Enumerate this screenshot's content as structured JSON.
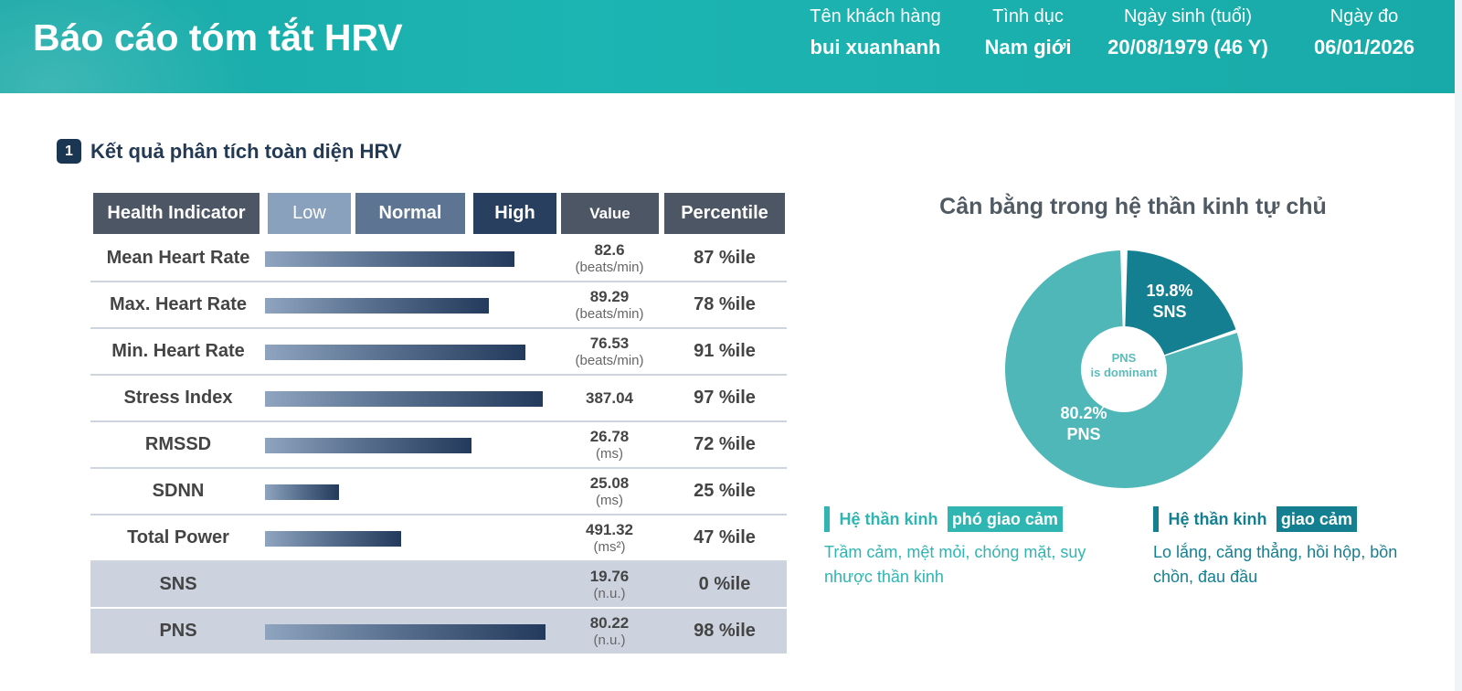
{
  "header": {
    "title": "Báo cáo tóm tắt HRV",
    "fields": [
      {
        "label": "Tên khách hàng",
        "value": "bui xuanhanh"
      },
      {
        "label": "Tình dục",
        "value": "Nam giới"
      },
      {
        "label": "Ngày sinh (tuổi)",
        "value": "20/08/1979 (46 Y)"
      },
      {
        "label": "Ngày đo",
        "value": "06/01/2026"
      }
    ]
  },
  "section": {
    "number": "1",
    "title": "Kết quả phân tích toàn diện HRV"
  },
  "table": {
    "headers": {
      "indicator": "Health Indicator",
      "low": "Low",
      "normal": "Normal",
      "high": "High",
      "value": "Value",
      "percentile": "Percentile"
    },
    "rows": [
      {
        "name": "Mean Heart Rate",
        "value": "82.6",
        "unit": "(beats/min)",
        "percentile": "87 %ile",
        "level": 0.88
      },
      {
        "name": "Max. Heart Rate",
        "value": "89.29",
        "unit": "(beats/min)",
        "percentile": "78 %ile",
        "level": 0.79
      },
      {
        "name": "Min. Heart Rate",
        "value": "76.53",
        "unit": "(beats/min)",
        "percentile": "91 %ile",
        "level": 0.92
      },
      {
        "name": "Stress Index",
        "value": "387.04",
        "unit": "",
        "percentile": "97 %ile",
        "level": 0.98
      },
      {
        "name": "RMSSD",
        "value": "26.78",
        "unit": "(ms)",
        "percentile": "72 %ile",
        "level": 0.73
      },
      {
        "name": "SDNN",
        "value": "25.08",
        "unit": "(ms)",
        "percentile": "25 %ile",
        "level": 0.26
      },
      {
        "name": "Total Power",
        "value": "491.32",
        "unit": "(ms²)",
        "percentile": "47 %ile",
        "level": 0.48
      },
      {
        "name": "SNS",
        "value": "19.76",
        "unit": "(n.u.)",
        "percentile": "0 %ile",
        "level": 0
      },
      {
        "name": "PNS",
        "value": "80.22",
        "unit": "(n.u.)",
        "percentile": "98 %ile",
        "level": 0.99
      }
    ]
  },
  "balance": {
    "title": "Cân bằng trong hệ thần kinh tự chủ",
    "center_line1": "PNS",
    "center_line2": "is dominant",
    "sns_pct": "19.8%",
    "sns_label": "SNS",
    "pns_pct": "80.2%",
    "pns_label": "PNS",
    "sns_color": "#137f91",
    "pns_color": "#4fb7b7"
  },
  "chart_data": {
    "type": "pie",
    "categories": [
      "SNS",
      "PNS"
    ],
    "values": [
      19.8,
      80.2
    ],
    "title": "Cân bằng trong hệ thần kinh tự chủ"
  },
  "legend": {
    "left": {
      "prefix": "Hệ thần kinh",
      "tag": "phó giao cảm",
      "desc": "Trầm cảm, mệt mỏi, chóng mặt, suy nhược thần kinh",
      "color": "#2fb5b2"
    },
    "right": {
      "prefix": "Hệ thần kinh",
      "tag": "giao cảm",
      "desc": "Lo lắng, căng thẳng, hồi hộp, bồn chồn, đau đầu",
      "color": "#137f91"
    }
  }
}
